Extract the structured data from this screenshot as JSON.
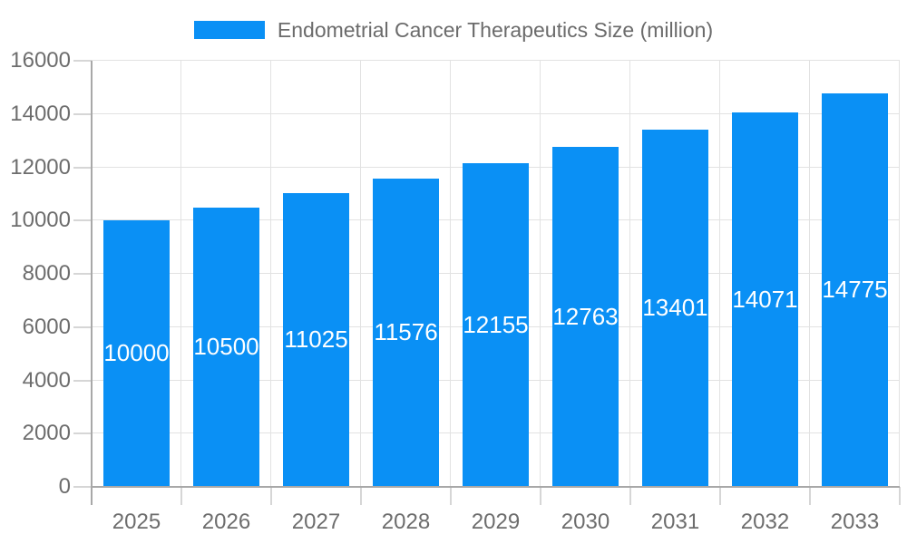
{
  "legend": {
    "label": "Endometrial Cancer Therapeutics Size (million)"
  },
  "chart_data": {
    "type": "bar",
    "title": "Endometrial Cancer Therapeutics Size (million)",
    "categories": [
      "2025",
      "2026",
      "2027",
      "2028",
      "2029",
      "2030",
      "2031",
      "2032",
      "2033"
    ],
    "series": [
      {
        "name": "Endometrial Cancer Therapeutics Size (million)",
        "values": [
          10000,
          10500,
          11025,
          11576,
          12155,
          12763,
          13401,
          14071,
          14775
        ]
      }
    ],
    "value_labels": [
      "10000",
      "10500",
      "11025",
      "11576",
      "12155",
      "12763",
      "13401",
      "14071",
      "14775"
    ],
    "xlabel": "",
    "ylabel": "",
    "ylim": [
      0,
      16000
    ],
    "yticks": [
      0,
      2000,
      4000,
      6000,
      8000,
      10000,
      12000,
      14000,
      16000
    ],
    "grid": true,
    "legend_position": "top",
    "value_label_position": "bar-center"
  },
  "colors": {
    "bar": "#0a90f5",
    "axis_line": "#a8a8a8",
    "gridline": "#e2e2e2",
    "tick": "#d6d6d6",
    "axis_text": "#6d6d6d",
    "legend_text": "#6b6b6b",
    "value_label_text": "#ffffff",
    "background": "#ffffff"
  }
}
